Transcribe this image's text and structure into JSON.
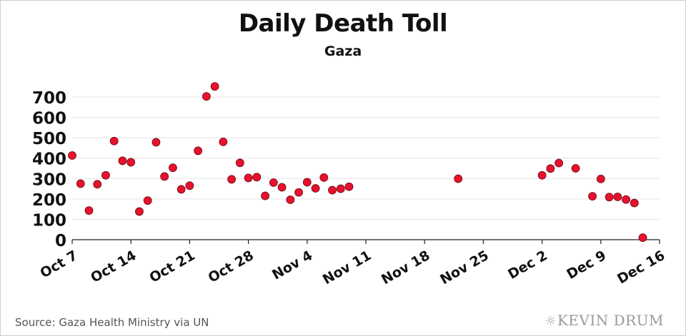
{
  "chart_data": {
    "type": "scatter",
    "title": "Daily Death Toll",
    "subtitle": "Gaza",
    "xlabel": "",
    "ylabel": "",
    "ylim": [
      0,
      800
    ],
    "yticks": [
      0,
      100,
      200,
      300,
      400,
      500,
      600,
      700
    ],
    "xticks": [
      "Oct 7",
      "Oct 14",
      "Oct 21",
      "Oct 28",
      "Nov 4",
      "Nov 11",
      "Nov 18",
      "Nov 25",
      "Dec 2",
      "Dec 9",
      "Dec 16"
    ],
    "grid": "horizontal",
    "marker_color": "#e8112d",
    "series": [
      {
        "x": [
          "Oct 7",
          "Oct 8",
          "Oct 9",
          "Oct 10",
          "Oct 11",
          "Oct 12",
          "Oct 13",
          "Oct 14",
          "Oct 15",
          "Oct 16",
          "Oct 17",
          "Oct 18",
          "Oct 19",
          "Oct 20",
          "Oct 21",
          "Oct 22",
          "Oct 23",
          "Oct 24",
          "Oct 25",
          "Oct 26",
          "Oct 27",
          "Oct 28",
          "Oct 29",
          "Oct 30",
          "Oct 31",
          "Nov 1",
          "Nov 2",
          "Nov 3",
          "Nov 4",
          "Nov 5",
          "Nov 6",
          "Nov 7",
          "Nov 8",
          "Nov 9",
          "Nov 22",
          "Dec 2",
          "Dec 3",
          "Dec 4",
          "Dec 6",
          "Dec 8",
          "Dec 9",
          "Dec 10",
          "Dec 11",
          "Dec 12",
          "Dec 13",
          "Dec 14"
        ],
        "values": [
          413,
          275,
          143,
          272,
          316,
          484,
          387,
          380,
          138,
          192,
          478,
          310,
          353,
          247,
          265,
          436,
          703,
          752,
          480,
          296,
          377,
          303,
          307,
          215,
          280,
          257,
          196,
          232,
          282,
          252,
          305,
          243,
          250,
          260,
          299,
          316,
          349,
          376,
          350,
          213,
          298,
          209,
          210,
          197,
          180,
          10
        ]
      }
    ]
  },
  "footer": {
    "source": "Source: Gaza Health Ministry via UN",
    "logo": "KEVIN DRUM"
  }
}
